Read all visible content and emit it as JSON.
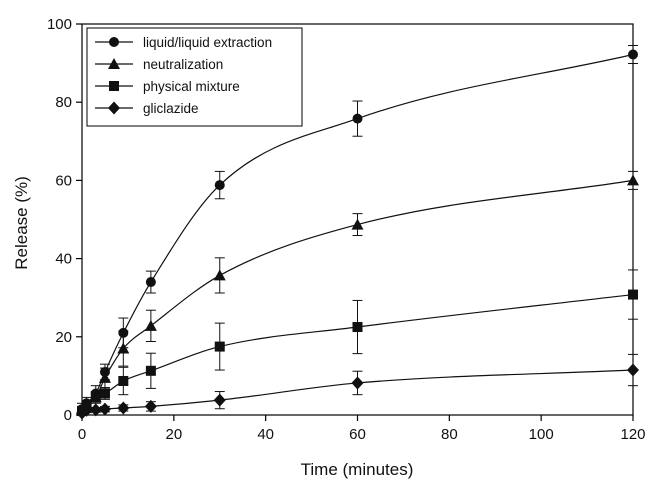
{
  "chart_data": {
    "type": "line",
    "xlabel": "Time (minutes)",
    "ylabel": "Release (%)",
    "xlim": [
      0,
      120
    ],
    "ylim": [
      0,
      100
    ],
    "xticks": [
      0,
      20,
      40,
      60,
      80,
      100,
      120
    ],
    "yticks": [
      0,
      20,
      40,
      60,
      80,
      100
    ],
    "grid": false,
    "legend_position": "top-left",
    "x": [
      0,
      1,
      3,
      5,
      9,
      15,
      30,
      60,
      120
    ],
    "series": [
      {
        "name": "liquid/liquid extraction",
        "marker": "circle",
        "values": [
          1.5,
          3,
          5.5,
          11,
          21,
          34,
          58.8,
          75.8,
          92.2
        ],
        "errors": [
          1.5,
          1.5,
          2,
          2,
          3.8,
          2.8,
          3.5,
          4.5,
          2.3
        ]
      },
      {
        "name": "neutralization",
        "marker": "triangle",
        "values": [
          1.2,
          2.5,
          4.5,
          9.5,
          17,
          22.8,
          35.7,
          48.7,
          60
        ],
        "errors": [
          1,
          1.2,
          1.5,
          2.5,
          4.5,
          4,
          4.5,
          2.8,
          2.3
        ]
      },
      {
        "name": "physical mixture",
        "marker": "square",
        "values": [
          1,
          2.5,
          4.5,
          5.5,
          8.7,
          11.3,
          17.5,
          22.5,
          30.8
        ],
        "errors": [
          1,
          1,
          1.2,
          1.5,
          3.5,
          4.5,
          6,
          6.8,
          6.3
        ]
      },
      {
        "name": "gliclazide",
        "marker": "diamond",
        "values": [
          0.5,
          1.2,
          1.3,
          1.5,
          1.8,
          2.2,
          3.8,
          8.2,
          11.5
        ],
        "errors": [
          0.5,
          0.6,
          0.6,
          0.7,
          0.8,
          1.2,
          2.2,
          3,
          4
        ]
      }
    ]
  }
}
